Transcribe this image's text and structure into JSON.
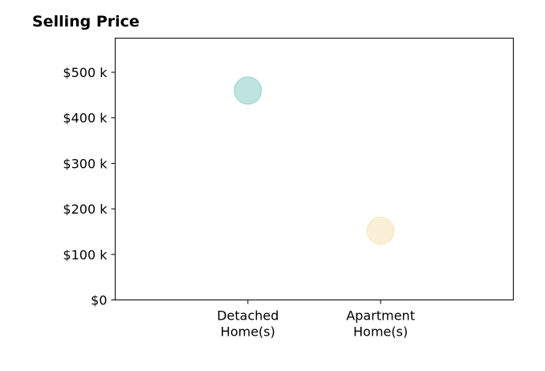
{
  "chart_data": {
    "type": "scatter",
    "title": "Selling Price",
    "xlabel": "",
    "ylabel": "",
    "categories": [
      "Detached Home(s)",
      "Apartment Home(s)"
    ],
    "category_label_lines": [
      [
        "Detached",
        "Home(s)"
      ],
      [
        "Apartment",
        "Home(s)"
      ]
    ],
    "xlim": [
      -1,
      2
    ],
    "ylim": [
      0,
      575000
    ],
    "yticks": [
      0,
      100000,
      200000,
      300000,
      400000,
      500000
    ],
    "ytick_labels": [
      "$0",
      "$100 k",
      "$200 k",
      "$300 k",
      "$400 k",
      "$500 k"
    ],
    "grid": false,
    "points": [
      {
        "category": "Detached Home(s)",
        "value": 460000,
        "color": "#7fc8c0"
      },
      {
        "category": "Apartment Home(s)",
        "value": 152000,
        "color": "#f5dfb0"
      }
    ]
  }
}
